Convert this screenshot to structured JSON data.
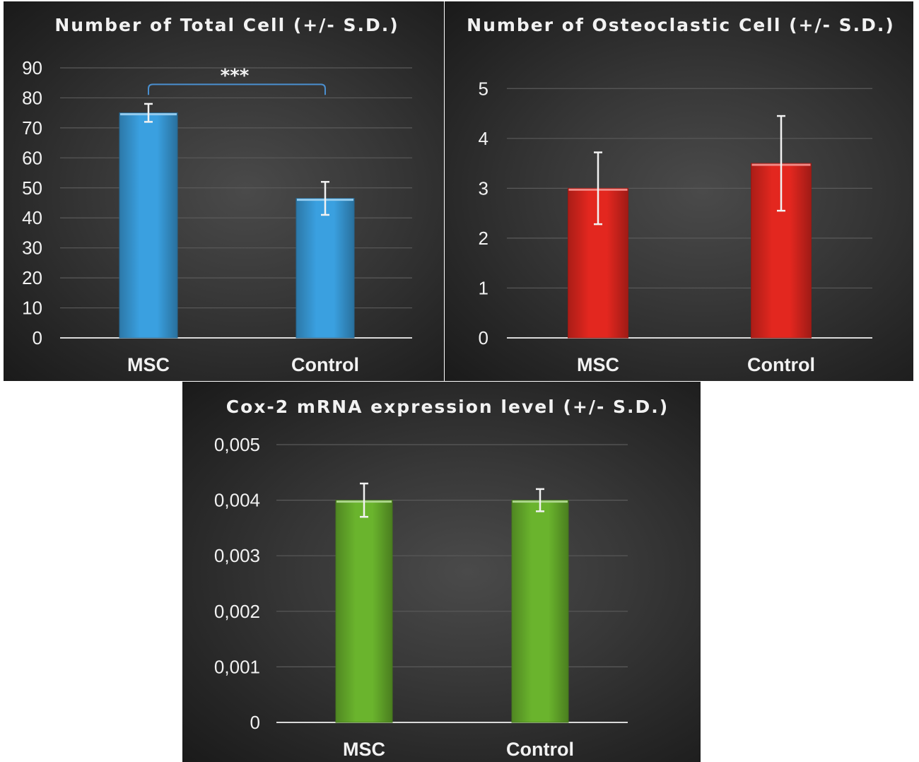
{
  "chart_data": [
    {
      "type": "bar",
      "title": "Number of Total Cell (+/- S.D.)",
      "categories": [
        "MSC",
        "Control"
      ],
      "values": [
        75,
        46.5
      ],
      "error": [
        3,
        5.5
      ],
      "ylim": [
        0,
        90
      ],
      "yticks": [
        0,
        10,
        20,
        30,
        40,
        50,
        60,
        70,
        80,
        90
      ],
      "ytick_labels": [
        "0",
        "10",
        "20",
        "30",
        "40",
        "50",
        "60",
        "70",
        "80",
        "90"
      ],
      "grid": true,
      "color": "#3aa0e0",
      "significance": {
        "between": [
          "MSC",
          "Control"
        ],
        "label": "***"
      }
    },
    {
      "type": "bar",
      "title": "Number of Osteoclastic Cell (+/- S.D.)",
      "categories": [
        "MSC",
        "Control"
      ],
      "values": [
        3,
        3.5
      ],
      "error": [
        0.72,
        0.95
      ],
      "ylim": [
        0,
        5.5
      ],
      "yticks": [
        0,
        1,
        2,
        3,
        4,
        5
      ],
      "ytick_labels": [
        "0",
        "1",
        "2",
        "3",
        "4",
        "5"
      ],
      "grid": true,
      "color": "#e3271f"
    },
    {
      "type": "bar",
      "title": "Cox-2 mRNA expression level (+/- S.D.)",
      "categories": [
        "MSC",
        "Control"
      ],
      "values": [
        0.004,
        0.004
      ],
      "error": [
        0.0003,
        0.0002
      ],
      "ylim": [
        0,
        0.005
      ],
      "yticks": [
        0,
        0.001,
        0.002,
        0.003,
        0.004,
        0.005
      ],
      "ytick_labels": [
        "0",
        "0,001",
        "0,002",
        "0,003",
        "0,004",
        "0,005"
      ],
      "grid": true,
      "color": "#6ab42d"
    }
  ]
}
